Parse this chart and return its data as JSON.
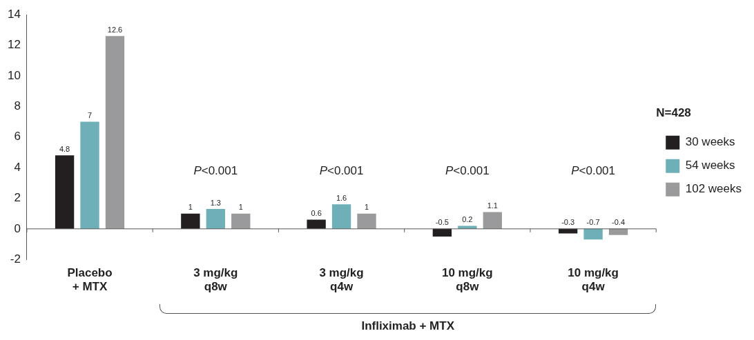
{
  "chart_data": {
    "type": "bar",
    "categories": [
      "Placebo\n+ MTX",
      "3 mg/kg\nq8w",
      "3 mg/kg\nq4w",
      "10 mg/kg\nq8w",
      "10 mg/kg\nq4w"
    ],
    "series": [
      {
        "name": "30 weeks",
        "color": "#231f20",
        "values": [
          4.8,
          1,
          0.6,
          -0.5,
          -0.3
        ]
      },
      {
        "name": "54 weeks",
        "color": "#6fb0b8",
        "values": [
          7,
          1.3,
          1.6,
          0.2,
          -0.7
        ]
      },
      {
        "name": "102 weeks",
        "color": "#9a9a9c",
        "values": [
          12.6,
          1,
          1,
          1.1,
          -0.4
        ]
      }
    ],
    "ylim": [
      -2,
      14
    ],
    "yticks": [
      -2,
      0,
      2,
      4,
      6,
      8,
      10,
      12,
      14
    ],
    "grid": false,
    "legend": "right",
    "legend_title": "N=428",
    "data_labels": true,
    "ref_lines": [
      {
        "axis": "y",
        "value": 0,
        "color": "#555555"
      }
    ],
    "annotations": [
      "P<0.001",
      "P<0.001",
      "P<0.001",
      "P<0.001",
      "Infliximab + MTX"
    ]
  }
}
